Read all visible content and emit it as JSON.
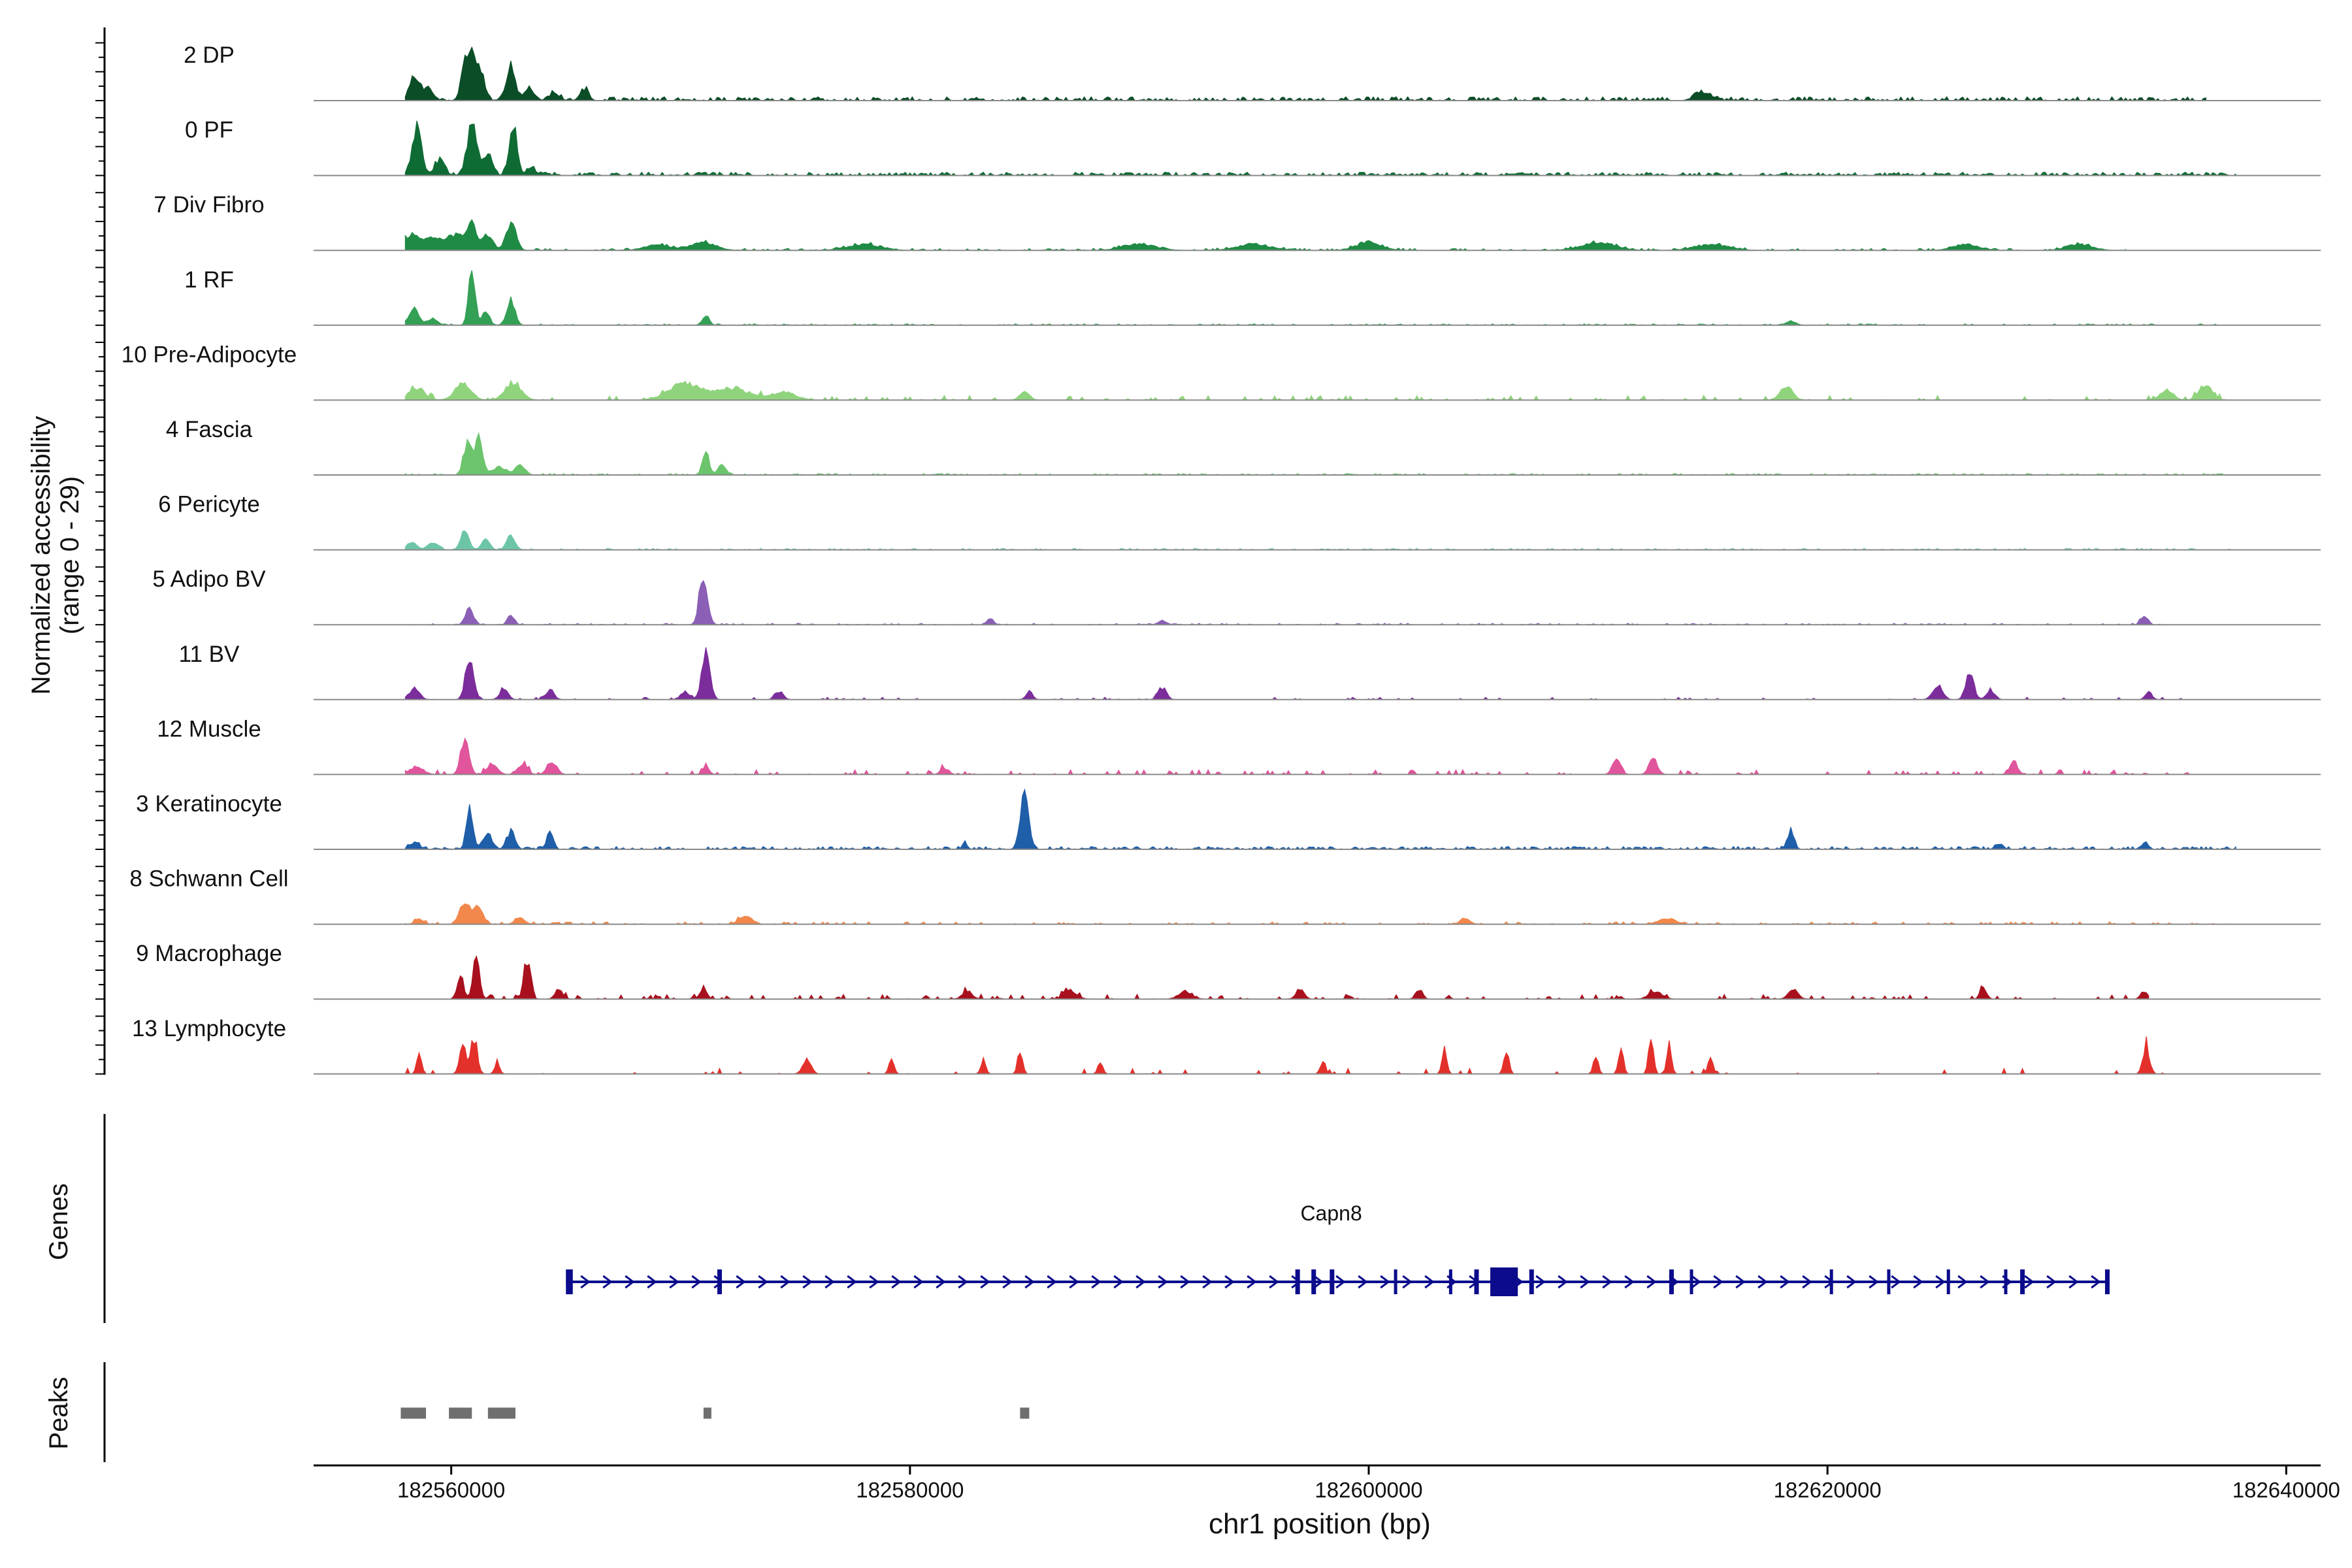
{
  "chart_data": {
    "type": "area",
    "title": "",
    "ylabel_line1": "Normalized accessibility",
    "ylabel_line2": "(range 0 - 29)",
    "ylim": [
      0,
      29
    ],
    "xlabel": "chr1 position (bp)",
    "xlim": [
      182554000,
      182641500
    ],
    "x_ticks": [
      182560000,
      182580000,
      182600000,
      182620000,
      182640000
    ],
    "x_tick_labels": [
      "182560000",
      "182580000",
      "182600000",
      "182620000",
      "182640000"
    ],
    "tracks": [
      {
        "name": "2 DP",
        "color": "#0b4d26",
        "noise": 1.6,
        "spread": [
          182558000,
          182636500
        ],
        "density": 0.55,
        "peaks": [
          [
            182558400,
            12,
            0.6
          ],
          [
            182559000,
            6,
            0.6
          ],
          [
            182560600,
            15,
            0.5
          ],
          [
            182560900,
            21,
            0.5
          ],
          [
            182561300,
            14,
            0.5
          ],
          [
            182562600,
            18,
            0.5
          ],
          [
            182563400,
            6,
            0.6
          ],
          [
            182564500,
            4,
            0.6
          ],
          [
            182565800,
            6,
            0.5
          ],
          [
            182614600,
            4,
            1.0
          ]
        ]
      },
      {
        "name": "0 PF",
        "color": "#0f6b34",
        "noise": 1.4,
        "spread": [
          182558000,
          182637800
        ],
        "density": 0.6,
        "peaks": [
          [
            182558500,
            24,
            0.6
          ],
          [
            182559500,
            8,
            0.6
          ],
          [
            182560900,
            26,
            0.6
          ],
          [
            182561600,
            12,
            0.5
          ],
          [
            182562700,
            24,
            0.5
          ],
          [
            182563500,
            4,
            0.5
          ]
        ]
      },
      {
        "name": "7 Div Fibro",
        "color": "#1f8a44",
        "noise": 0.8,
        "spread": [
          182558000,
          182633000
        ],
        "density": 0.3,
        "peaks": [
          [
            182558300,
            8,
            1.0
          ],
          [
            182559200,
            6,
            1.0
          ],
          [
            182560200,
            8,
            1.0
          ],
          [
            182560900,
            12,
            0.6
          ],
          [
            182561600,
            8,
            0.6
          ],
          [
            182562600,
            14,
            0.6
          ],
          [
            182569000,
            3,
            1.5
          ],
          [
            182571000,
            4,
            1.5
          ],
          [
            182578000,
            3,
            2.0
          ],
          [
            182590000,
            3,
            2.0
          ],
          [
            182595000,
            3,
            2.0
          ],
          [
            182600000,
            4,
            1.5
          ],
          [
            182610000,
            4,
            2.0
          ],
          [
            182615000,
            3,
            2.0
          ],
          [
            182626000,
            3,
            1.5
          ],
          [
            182631000,
            3,
            1.5
          ]
        ]
      },
      {
        "name": "1 RF",
        "color": "#34a055",
        "noise": 0.6,
        "spread": [
          182558000,
          182637000
        ],
        "density": 0.35,
        "peaks": [
          [
            182558400,
            8,
            0.6
          ],
          [
            182559200,
            3,
            0.6
          ],
          [
            182560900,
            28,
            0.4
          ],
          [
            182561500,
            6,
            0.5
          ],
          [
            182562600,
            12,
            0.5
          ],
          [
            182571100,
            5,
            0.4
          ],
          [
            182618400,
            2,
            0.6
          ]
        ]
      },
      {
        "name": "10 Pre-Adipocyte",
        "color": "#8fd47d",
        "noise": 2.0,
        "spread": [
          182558000,
          182637800
        ],
        "density": 0.18,
        "peaks": [
          [
            182558500,
            6,
            1.0
          ],
          [
            182560500,
            8,
            1.0
          ],
          [
            182562700,
            9,
            1.0
          ],
          [
            182570200,
            8,
            2.0
          ],
          [
            182572300,
            6,
            2.0
          ],
          [
            182574500,
            4,
            1.5
          ],
          [
            182585000,
            4,
            0.6
          ],
          [
            182618200,
            6,
            0.8
          ],
          [
            182634800,
            5,
            0.8
          ],
          [
            182636500,
            8,
            0.8
          ]
        ]
      },
      {
        "name": "4 Fascia",
        "color": "#6cc46c",
        "noise": 0.6,
        "spread": [
          182558000,
          182637800
        ],
        "density": 0.35,
        "peaks": [
          [
            182560700,
            15,
            0.5
          ],
          [
            182561200,
            18,
            0.5
          ],
          [
            182562100,
            4,
            0.8
          ],
          [
            182563000,
            5,
            0.6
          ],
          [
            182571100,
            12,
            0.4
          ],
          [
            182571800,
            5,
            0.5
          ]
        ]
      },
      {
        "name": "6 Pericyte",
        "color": "#6cc6a6",
        "noise": 0.6,
        "spread": [
          182558000,
          182637800
        ],
        "density": 0.35,
        "peaks": [
          [
            182558300,
            4,
            0.6
          ],
          [
            182559200,
            4,
            0.6
          ],
          [
            182560600,
            9,
            0.5
          ],
          [
            182561500,
            5,
            0.5
          ],
          [
            182562600,
            7,
            0.5
          ]
        ]
      },
      {
        "name": "5 Adipo BV",
        "color": "#8a5fb5",
        "noise": 0.6,
        "spread": [
          182558000,
          182634500
        ],
        "density": 0.25,
        "peaks": [
          [
            182560800,
            8,
            0.5
          ],
          [
            182562600,
            5,
            0.4
          ],
          [
            182571000,
            26,
            0.5
          ],
          [
            182583500,
            3,
            0.4
          ],
          [
            182591000,
            2,
            0.5
          ],
          [
            182633800,
            5,
            0.4
          ]
        ]
      },
      {
        "name": "11 BV",
        "color": "#7b2d9b",
        "noise": 1.0,
        "spread": [
          182558000,
          182637000
        ],
        "density": 0.12,
        "peaks": [
          [
            182558400,
            6,
            0.6
          ],
          [
            182560800,
            22,
            0.5
          ],
          [
            182562300,
            6,
            0.5
          ],
          [
            182564300,
            5,
            0.5
          ],
          [
            182570200,
            4,
            0.5
          ],
          [
            182571100,
            24,
            0.5
          ],
          [
            182574300,
            4,
            0.5
          ],
          [
            182585200,
            4,
            0.4
          ],
          [
            182591000,
            6,
            0.5
          ],
          [
            182624800,
            7,
            0.6
          ],
          [
            182626200,
            14,
            0.5
          ],
          [
            182627100,
            5,
            0.5
          ],
          [
            182634000,
            4,
            0.4
          ]
        ]
      },
      {
        "name": "12 Muscle",
        "color": "#e0559c",
        "noise": 2.0,
        "spread": [
          182558000,
          182636500
        ],
        "density": 0.2,
        "peaks": [
          [
            182558500,
            4,
            0.8
          ],
          [
            182560600,
            16,
            0.5
          ],
          [
            182561800,
            6,
            0.6
          ],
          [
            182563100,
            5,
            0.6
          ],
          [
            182564400,
            6,
            0.6
          ],
          [
            182571100,
            4,
            0.4
          ],
          [
            182581500,
            3,
            0.5
          ],
          [
            182610800,
            8,
            0.5
          ],
          [
            182612400,
            9,
            0.5
          ],
          [
            182628100,
            6,
            0.5
          ]
        ]
      },
      {
        "name": "3 Keratinocyte",
        "color": "#1f5ea8",
        "noise": 1.2,
        "spread": [
          182558000,
          182637800
        ],
        "density": 0.6,
        "peaks": [
          [
            182558400,
            3,
            0.6
          ],
          [
            182560800,
            20,
            0.4
          ],
          [
            182561600,
            8,
            0.5
          ],
          [
            182562600,
            9,
            0.5
          ],
          [
            182564300,
            8,
            0.4
          ],
          [
            182582400,
            3,
            0.3
          ],
          [
            182585000,
            28,
            0.5
          ],
          [
            182618400,
            10,
            0.4
          ],
          [
            182627500,
            3,
            0.4
          ],
          [
            182633800,
            3,
            0.4
          ]
        ]
      },
      {
        "name": "8 Schwann Cell",
        "color": "#f2884b",
        "noise": 1.0,
        "spread": [
          182558000,
          182637800
        ],
        "density": 0.28,
        "peaks": [
          [
            182558600,
            3,
            0.5
          ],
          [
            182560600,
            12,
            0.6
          ],
          [
            182561200,
            9,
            0.5
          ],
          [
            182563000,
            3,
            0.6
          ],
          [
            182572800,
            4,
            0.8
          ],
          [
            182604200,
            3,
            0.6
          ],
          [
            182613000,
            3,
            1.0
          ]
        ]
      },
      {
        "name": "9 Macrophage",
        "color": "#a8101e",
        "noise": 2.0,
        "spread": [
          182560000,
          182634000
        ],
        "density": 0.18,
        "peaks": [
          [
            182560400,
            12,
            0.4
          ],
          [
            182561100,
            22,
            0.4
          ],
          [
            182563300,
            20,
            0.4
          ],
          [
            182564700,
            4,
            0.5
          ],
          [
            182571000,
            6,
            0.4
          ],
          [
            182582500,
            4,
            0.6
          ],
          [
            182587000,
            4,
            0.8
          ],
          [
            182592000,
            4,
            0.8
          ],
          [
            182597000,
            5,
            0.5
          ],
          [
            182602200,
            5,
            0.4
          ],
          [
            182612500,
            4,
            0.8
          ],
          [
            182618500,
            5,
            0.6
          ],
          [
            182626800,
            6,
            0.4
          ],
          [
            182633800,
            4,
            0.4
          ]
        ]
      },
      {
        "name": "13 Lymphocyte",
        "color": "#e4302b",
        "noise": 2.4,
        "spread": [
          182558000,
          182635000
        ],
        "density": 0.08,
        "peaks": [
          [
            182558600,
            10,
            0.3
          ],
          [
            182560500,
            14,
            0.4
          ],
          [
            182561000,
            18,
            0.4
          ],
          [
            182562000,
            6,
            0.3
          ],
          [
            182575500,
            8,
            0.5
          ],
          [
            182579200,
            8,
            0.3
          ],
          [
            182583200,
            7,
            0.3
          ],
          [
            182584800,
            12,
            0.3
          ],
          [
            182588300,
            6,
            0.3
          ],
          [
            182598000,
            7,
            0.3
          ],
          [
            182603300,
            10,
            0.3
          ],
          [
            182606000,
            12,
            0.3
          ],
          [
            182609900,
            10,
            0.3
          ],
          [
            182611000,
            12,
            0.3
          ],
          [
            182612300,
            18,
            0.3
          ],
          [
            182613100,
            14,
            0.3
          ],
          [
            182614900,
            8,
            0.3
          ],
          [
            182633900,
            14,
            0.4
          ]
        ]
      }
    ],
    "genes": {
      "label": "Genes",
      "items": [
        {
          "name": "Capn8",
          "start": 182565000,
          "end": 182632300,
          "strand": "+",
          "color": "#0b0b8c",
          "exons": [
            [
              182565000,
              182565300
            ],
            [
              182571600,
              182571800
            ],
            [
              182596800,
              182597000
            ],
            [
              182597500,
              182597700
            ],
            [
              182598300,
              182598500
            ],
            [
              182601100,
              182601200
            ],
            [
              182603500,
              182603600
            ],
            [
              182604600,
              182604800
            ],
            [
              182605300,
              182606500
            ],
            [
              182607000,
              182607200
            ],
            [
              182613100,
              182613300
            ],
            [
              182614000,
              182614100
            ],
            [
              182620100,
              182620200
            ],
            [
              182622600,
              182622700
            ],
            [
              182625200,
              182625300
            ],
            [
              182627700,
              182627800
            ],
            [
              182628400,
              182628600
            ],
            [
              182632100,
              182632300
            ]
          ]
        }
      ]
    },
    "peaks_track": {
      "label": "Peaks",
      "color": "#6f6f6f",
      "regions": [
        [
          182557800,
          182558900
        ],
        [
          182559900,
          182560900
        ],
        [
          182561600,
          182562800
        ],
        [
          182571000,
          182571300
        ],
        [
          182584800,
          182585200
        ]
      ]
    }
  }
}
